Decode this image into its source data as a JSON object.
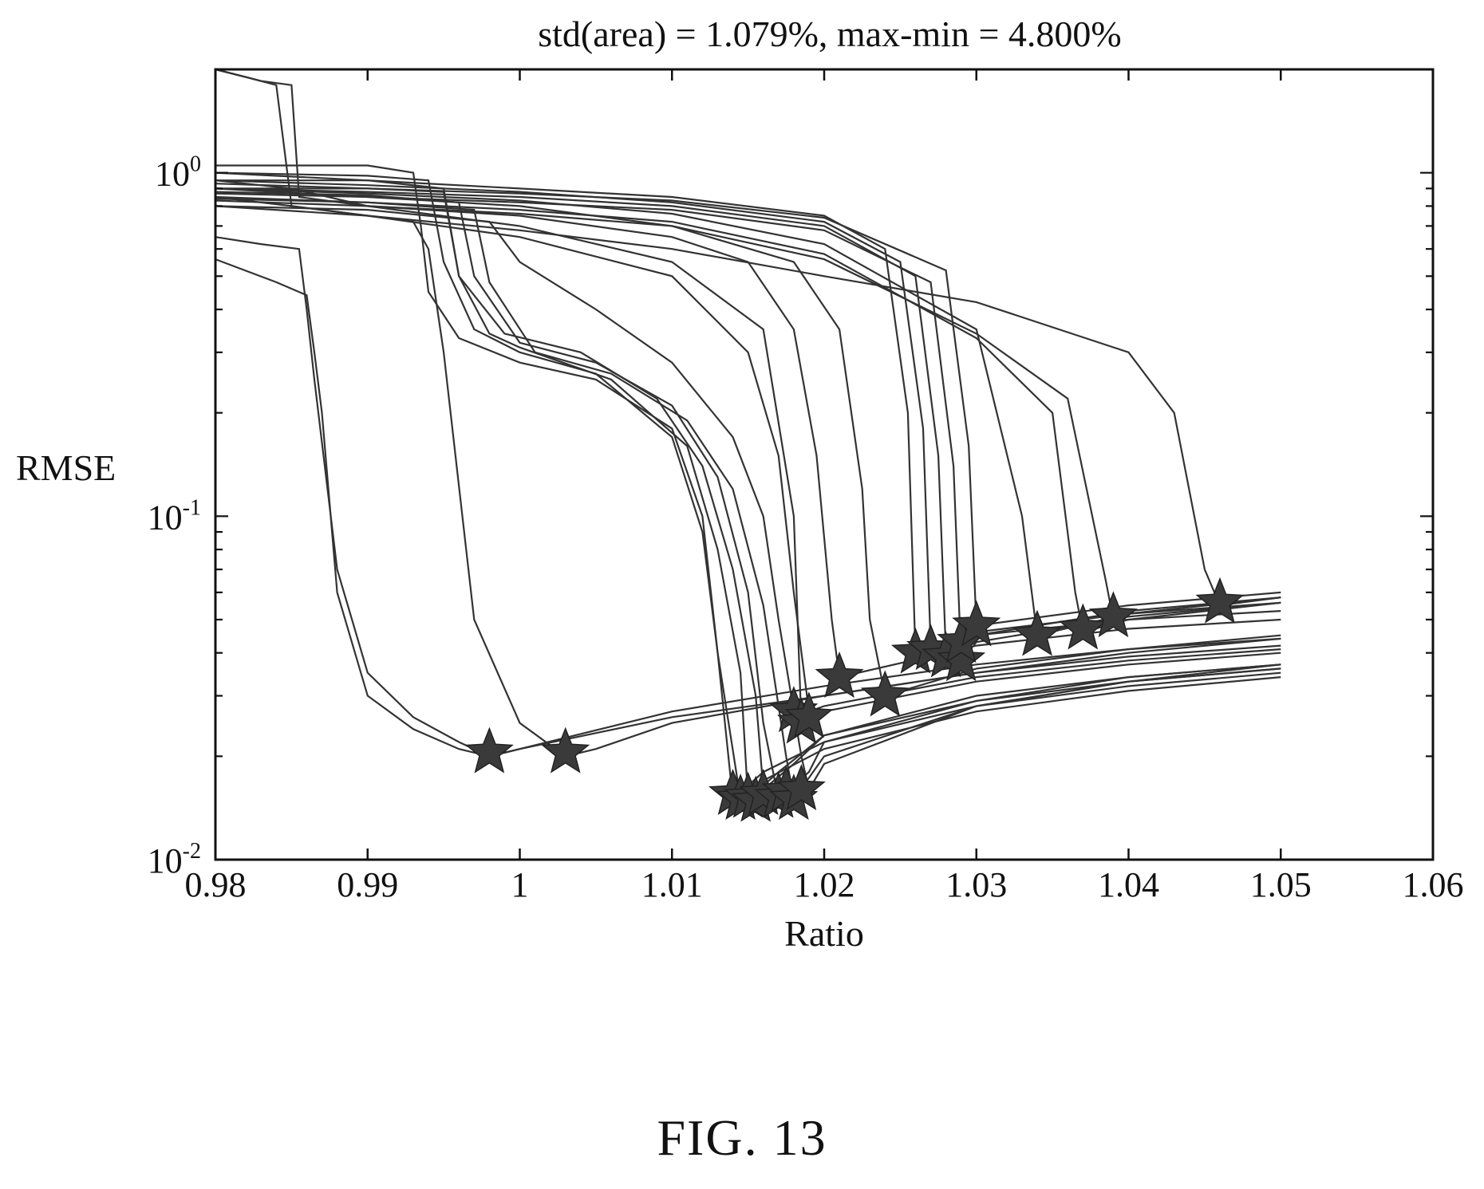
{
  "figure_label": "FIG. 13",
  "chart_data": {
    "type": "line",
    "title": "std(area) = 1.079%, max-min = 4.800%",
    "xlabel": "Ratio",
    "ylabel": "RMSE",
    "xlim": [
      0.98,
      1.06
    ],
    "ylim": [
      0.01,
      2.0
    ],
    "yscale": "log",
    "x_ticks": [
      "0.98",
      "0.99",
      "1",
      "1.01",
      "1.02",
      "1.03",
      "1.04",
      "1.05",
      "1.06"
    ],
    "y_ticks": [
      {
        "base": "10",
        "exp": "0"
      },
      {
        "base": "10",
        "exp": "-1"
      },
      {
        "base": "10",
        "exp": "-2"
      }
    ],
    "grid": false,
    "legend": "none",
    "line_color": "#333333",
    "marker": "star",
    "series": [
      {
        "x": [
          0.98,
          0.984,
          0.986,
          0.9865,
          0.987,
          0.988,
          0.99,
          0.993,
          0.996,
          0.998,
          1.0,
          1.01,
          1.02,
          1.03,
          1.04,
          1.05
        ],
        "y": [
          0.56,
          0.48,
          0.44,
          0.3,
          0.2,
          0.06,
          0.03,
          0.024,
          0.021,
          0.02,
          0.021,
          0.027,
          0.032,
          0.037,
          0.041,
          0.044
        ]
      },
      {
        "x": [
          0.98,
          0.983,
          0.9855,
          0.986,
          0.9865,
          0.988,
          0.99,
          0.993,
          0.996,
          0.998,
          1.0,
          1.01,
          1.02,
          1.03,
          1.04,
          1.05
        ],
        "y": [
          0.65,
          0.62,
          0.6,
          0.4,
          0.25,
          0.07,
          0.035,
          0.026,
          0.022,
          0.02,
          0.021,
          0.026,
          0.03,
          0.035,
          0.039,
          0.042
        ]
      },
      {
        "x": [
          0.98,
          0.985,
          0.99,
          0.993,
          0.994,
          0.995,
          0.997,
          1.0,
          1.003,
          1.005,
          1.01,
          1.02,
          1.03,
          1.04,
          1.05
        ],
        "y": [
          0.85,
          0.8,
          0.75,
          0.72,
          0.6,
          0.3,
          0.05,
          0.025,
          0.02,
          0.021,
          0.025,
          0.03,
          0.035,
          0.04,
          0.044
        ]
      },
      {
        "x": [
          0.98,
          0.99,
          0.993,
          0.9935,
          0.994,
          0.996,
          1.0,
          1.005,
          1.01,
          1.012,
          1.013,
          1.014,
          1.016,
          1.02,
          1.03,
          1.04,
          1.05
        ],
        "y": [
          1.05,
          1.05,
          1.0,
          0.7,
          0.45,
          0.33,
          0.28,
          0.25,
          0.18,
          0.1,
          0.04,
          0.015,
          0.018,
          0.022,
          0.028,
          0.032,
          0.035
        ]
      },
      {
        "x": [
          0.98,
          0.99,
          0.994,
          0.995,
          0.997,
          1.0,
          1.005,
          1.01,
          1.012,
          1.013,
          1.0145,
          1.016,
          1.02,
          1.03,
          1.04,
          1.05
        ],
        "y": [
          1.0,
          0.98,
          0.95,
          0.55,
          0.35,
          0.3,
          0.26,
          0.17,
          0.09,
          0.04,
          0.015,
          0.017,
          0.021,
          0.027,
          0.031,
          0.034
        ]
      },
      {
        "x": [
          0.98,
          0.99,
          0.995,
          0.996,
          0.998,
          1.0,
          1.006,
          1.011,
          1.013,
          1.0145,
          1.015,
          1.017,
          1.02,
          1.03,
          1.04,
          1.05
        ],
        "y": [
          0.95,
          0.95,
          0.9,
          0.5,
          0.34,
          0.31,
          0.25,
          0.16,
          0.08,
          0.035,
          0.015,
          0.018,
          0.023,
          0.029,
          0.033,
          0.036
        ]
      },
      {
        "x": [
          0.98,
          0.99,
          0.995,
          0.996,
          0.999,
          1.004,
          1.009,
          1.012,
          1.014,
          1.0155,
          1.016,
          1.018,
          1.02,
          1.03,
          1.04,
          1.05
        ],
        "y": [
          0.9,
          0.9,
          0.88,
          0.5,
          0.34,
          0.3,
          0.22,
          0.14,
          0.07,
          0.03,
          0.016,
          0.019,
          0.023,
          0.03,
          0.034,
          0.037
        ]
      },
      {
        "x": [
          0.98,
          0.99,
          0.996,
          0.997,
          1.0,
          1.005,
          1.01,
          1.013,
          1.015,
          1.016,
          1.017,
          1.019,
          1.02,
          1.03,
          1.04,
          1.05
        ],
        "y": [
          0.88,
          0.86,
          0.82,
          0.5,
          0.32,
          0.28,
          0.21,
          0.13,
          0.06,
          0.025,
          0.015,
          0.018,
          0.022,
          0.029,
          0.034,
          0.037
        ]
      },
      {
        "x": [
          0.98,
          0.99,
          0.997,
          0.998,
          1.001,
          1.006,
          1.011,
          1.014,
          1.016,
          1.0175,
          1.018,
          1.02,
          1.03,
          1.04,
          1.05
        ],
        "y": [
          0.84,
          0.82,
          0.78,
          0.48,
          0.3,
          0.26,
          0.19,
          0.12,
          0.055,
          0.02,
          0.015,
          0.02,
          0.028,
          0.033,
          0.036
        ]
      },
      {
        "x": [
          0.98,
          0.99,
          0.998,
          1.0,
          1.005,
          1.01,
          1.014,
          1.016,
          1.017,
          1.0185,
          1.019,
          1.02,
          1.03,
          1.04,
          1.05
        ],
        "y": [
          0.8,
          0.78,
          0.72,
          0.55,
          0.4,
          0.28,
          0.17,
          0.1,
          0.05,
          0.02,
          0.016,
          0.019,
          0.028,
          0.033,
          0.037
        ]
      },
      {
        "x": [
          0.98,
          0.982,
          0.984,
          0.985,
          0.99,
          1.0,
          1.01,
          1.015,
          1.017,
          1.018,
          1.019,
          1.02,
          1.03,
          1.04,
          1.05
        ],
        "y": [
          2.0,
          1.9,
          1.8,
          0.8,
          0.75,
          0.65,
          0.5,
          0.3,
          0.15,
          0.06,
          0.027,
          0.028,
          0.034,
          0.038,
          0.041
        ]
      },
      {
        "x": [
          0.98,
          0.983,
          0.985,
          0.9855,
          0.99,
          1.0,
          1.01,
          1.016,
          1.018,
          1.0185,
          1.02,
          1.03,
          1.04,
          1.05
        ],
        "y": [
          2.0,
          1.85,
          1.8,
          0.85,
          0.8,
          0.7,
          0.55,
          0.35,
          0.1,
          0.025,
          0.027,
          0.033,
          0.037,
          0.04
        ]
      },
      {
        "x": [
          0.98,
          0.985,
          0.99,
          1.0,
          1.01,
          1.015,
          1.018,
          1.0195,
          1.0205,
          1.021,
          1.03,
          1.04,
          1.05
        ],
        "y": [
          0.95,
          0.9,
          0.8,
          0.75,
          0.65,
          0.55,
          0.35,
          0.15,
          0.05,
          0.034,
          0.042,
          0.047,
          0.05
        ]
      },
      {
        "x": [
          0.98,
          0.99,
          1.0,
          1.01,
          1.018,
          1.021,
          1.0225,
          1.023,
          1.024,
          1.03,
          1.04,
          1.05
        ],
        "y": [
          0.9,
          0.85,
          0.8,
          0.7,
          0.55,
          0.35,
          0.12,
          0.05,
          0.03,
          0.036,
          0.041,
          0.045
        ]
      },
      {
        "x": [
          0.98,
          0.99,
          1.0,
          1.01,
          1.02,
          1.024,
          1.0255,
          1.026,
          1.03,
          1.04,
          1.05
        ],
        "y": [
          1.0,
          0.95,
          0.9,
          0.85,
          0.75,
          0.6,
          0.2,
          0.04,
          0.045,
          0.05,
          0.053
        ]
      },
      {
        "x": [
          0.98,
          0.99,
          1.0,
          1.01,
          1.02,
          1.025,
          1.0265,
          1.027,
          1.03,
          1.04,
          1.05
        ],
        "y": [
          0.95,
          0.92,
          0.88,
          0.82,
          0.72,
          0.55,
          0.18,
          0.042,
          0.046,
          0.052,
          0.056
        ]
      },
      {
        "x": [
          0.98,
          0.99,
          1.0,
          1.01,
          1.02,
          1.026,
          1.0275,
          1.028,
          1.03,
          1.04,
          1.05
        ],
        "y": [
          0.9,
          0.88,
          0.85,
          0.8,
          0.7,
          0.5,
          0.15,
          0.04,
          0.045,
          0.053,
          0.058
        ]
      },
      {
        "x": [
          0.98,
          0.99,
          1.0,
          1.01,
          1.02,
          1.027,
          1.0285,
          1.029,
          1.03,
          1.04,
          1.05
        ],
        "y": [
          0.87,
          0.85,
          0.82,
          0.78,
          0.68,
          0.48,
          0.14,
          0.038,
          0.043,
          0.051,
          0.056
        ]
      },
      {
        "x": [
          0.98,
          0.99,
          1.0,
          1.01,
          1.02,
          1.028,
          1.0295,
          1.03,
          1.04,
          1.05
        ],
        "y": [
          0.93,
          0.9,
          0.87,
          0.83,
          0.74,
          0.52,
          0.16,
          0.048,
          0.055,
          0.06
        ]
      },
      {
        "x": [
          0.98,
          0.99,
          1.0,
          1.01,
          1.02,
          1.03,
          1.033,
          1.034,
          1.04,
          1.05
        ],
        "y": [
          0.9,
          0.87,
          0.83,
          0.76,
          0.62,
          0.35,
          0.1,
          0.045,
          0.052,
          0.058
        ]
      },
      {
        "x": [
          0.98,
          0.99,
          1.0,
          1.01,
          1.02,
          1.03,
          1.035,
          1.0365,
          1.037,
          1.04,
          1.05
        ],
        "y": [
          0.85,
          0.82,
          0.78,
          0.72,
          0.58,
          0.33,
          0.2,
          0.06,
          0.046,
          0.05,
          0.056
        ]
      },
      {
        "x": [
          0.98,
          0.99,
          1.0,
          1.01,
          1.02,
          1.03,
          1.036,
          1.0385,
          1.039,
          1.04,
          1.05
        ],
        "y": [
          0.83,
          0.8,
          0.76,
          0.7,
          0.56,
          0.34,
          0.22,
          0.065,
          0.05,
          0.052,
          0.058
        ]
      },
      {
        "x": [
          0.98,
          0.99,
          1.0,
          1.01,
          1.02,
          1.03,
          1.04,
          1.043,
          1.045,
          1.046,
          1.05
        ],
        "y": [
          0.8,
          0.75,
          0.68,
          0.6,
          0.5,
          0.42,
          0.3,
          0.2,
          0.07,
          0.055,
          0.058
        ]
      }
    ],
    "star_markers": [
      {
        "x": 0.998,
        "y": 0.0205
      },
      {
        "x": 1.003,
        "y": 0.0205
      },
      {
        "x": 1.014,
        "y": 0.0155
      },
      {
        "x": 1.0145,
        "y": 0.015
      },
      {
        "x": 1.015,
        "y": 0.0152
      },
      {
        "x": 1.0155,
        "y": 0.0148
      },
      {
        "x": 1.016,
        "y": 0.0155
      },
      {
        "x": 1.017,
        "y": 0.0152
      },
      {
        "x": 1.0175,
        "y": 0.0158
      },
      {
        "x": 1.018,
        "y": 0.015
      },
      {
        "x": 1.0185,
        "y": 0.016
      },
      {
        "x": 1.018,
        "y": 0.027
      },
      {
        "x": 1.0185,
        "y": 0.025
      },
      {
        "x": 1.019,
        "y": 0.026
      },
      {
        "x": 1.021,
        "y": 0.034
      },
      {
        "x": 1.024,
        "y": 0.03
      },
      {
        "x": 1.026,
        "y": 0.04
      },
      {
        "x": 1.027,
        "y": 0.041
      },
      {
        "x": 1.028,
        "y": 0.039
      },
      {
        "x": 1.029,
        "y": 0.038
      },
      {
        "x": 1.029,
        "y": 0.043
      },
      {
        "x": 1.03,
        "y": 0.048
      },
      {
        "x": 1.034,
        "y": 0.045
      },
      {
        "x": 1.037,
        "y": 0.047
      },
      {
        "x": 1.039,
        "y": 0.051
      },
      {
        "x": 1.046,
        "y": 0.056
      }
    ]
  }
}
